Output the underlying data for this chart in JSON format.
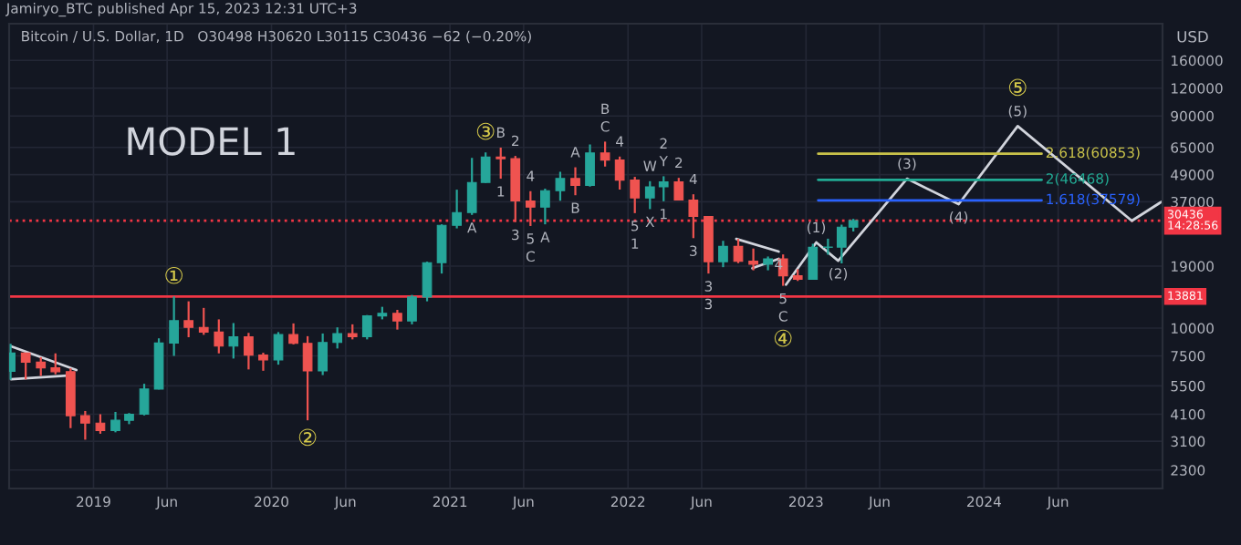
{
  "chart_data": {
    "type": "candlestick",
    "title": "Jamiryo_BTC published Apr 15, 2023 12:31 UTC+3",
    "subtitle": "Bitcoin / U.S. Dollar, 1D   O30498 H30620 L30115 C30436 −62 (−0.20%)",
    "ylabel": "USD",
    "x": [
      "2018-07-15",
      "2018-08-15",
      "2018-09-15",
      "2018-10-15",
      "2018-11-15",
      "2018-12-15",
      "2019-01-15",
      "2019-02-15",
      "2019-03-15",
      "2019-04-15",
      "2019-05-15",
      "2019-06-15",
      "2019-07-15",
      "2019-08-15",
      "2019-09-15",
      "2019-10-15",
      "2019-11-15",
      "2019-12-15",
      "2020-01-15",
      "2020-02-15",
      "2020-03-15",
      "2020-04-15",
      "2020-05-15",
      "2020-06-15",
      "2020-07-15",
      "2020-08-15",
      "2020-09-15",
      "2020-10-15",
      "2020-11-15",
      "2020-12-15",
      "2021-01-15",
      "2021-02-15",
      "2021-03-15",
      "2021-04-15",
      "2021-05-15",
      "2021-06-15",
      "2021-07-15",
      "2021-08-15",
      "2021-09-15",
      "2021-10-15",
      "2021-11-15",
      "2021-12-15",
      "2022-01-15",
      "2022-02-15",
      "2022-03-15",
      "2022-04-15",
      "2022-05-15",
      "2022-06-15",
      "2022-07-15",
      "2022-08-15",
      "2022-09-15",
      "2022-10-15",
      "2022-11-15",
      "2022-12-15",
      "2023-01-15",
      "2023-02-15",
      "2023-03-15",
      "2023-04-08"
    ],
    "ohlc": [
      [
        6390,
        8500,
        5860,
        7730
      ],
      [
        7730,
        7760,
        5880,
        7030
      ],
      [
        7030,
        7400,
        6100,
        6630
      ],
      [
        6630,
        7700,
        6200,
        6370
      ],
      [
        6370,
        6600,
        3550,
        4040
      ],
      [
        4040,
        4240,
        3150,
        3740
      ],
      [
        3740,
        4100,
        3350,
        3460
      ],
      [
        3460,
        4200,
        3400,
        3850
      ],
      [
        3850,
        4150,
        3700,
        4100
      ],
      [
        4100,
        5620,
        4050,
        5320
      ],
      [
        5320,
        9000,
        5300,
        8570
      ],
      [
        8570,
        13880,
        7500,
        10800
      ],
      [
        10800,
        13200,
        9100,
        10080
      ],
      [
        10080,
        12330,
        9330,
        9600
      ],
      [
        9600,
        10950,
        7700,
        8300
      ],
      [
        8300,
        10540,
        7300,
        9150
      ],
      [
        9150,
        9520,
        6520,
        7560
      ],
      [
        7560,
        7750,
        6430,
        7200
      ],
      [
        7200,
        9600,
        6850,
        9350
      ],
      [
        9350,
        10500,
        8450,
        8540
      ],
      [
        8540,
        9200,
        3850,
        6420
      ],
      [
        6420,
        9460,
        6150,
        8620
      ],
      [
        8620,
        10080,
        8100,
        9450
      ],
      [
        9450,
        10400,
        8900,
        9140
      ],
      [
        9140,
        11450,
        8900,
        11350
      ],
      [
        11350,
        12470,
        10950,
        11650
      ],
      [
        11650,
        12080,
        9850,
        10780
      ],
      [
        10780,
        14100,
        10400,
        13800
      ],
      [
        13800,
        19900,
        13200,
        19700
      ],
      [
        19700,
        29300,
        17600,
        28990
      ],
      [
        28990,
        41950,
        28100,
        33100
      ],
      [
        33100,
        58300,
        32300,
        45200
      ],
      [
        45200,
        61700,
        45000,
        58800
      ],
      [
        58800,
        64850,
        47000,
        57800
      ],
      [
        57800,
        59500,
        30000,
        37300
      ],
      [
        37300,
        41300,
        28800,
        35000
      ],
      [
        35000,
        42400,
        29300,
        41500
      ],
      [
        41500,
        50500,
        37400,
        47100
      ],
      [
        47100,
        52900,
        39600,
        43800
      ],
      [
        43800,
        67000,
        43300,
        61300
      ],
      [
        61300,
        69000,
        53300,
        57000
      ],
      [
        57000,
        59100,
        42000,
        46300
      ],
      [
        46300,
        47900,
        32900,
        38500
      ],
      [
        38500,
        45800,
        34300,
        43200
      ],
      [
        43200,
        48200,
        37200,
        45500
      ],
      [
        45500,
        47400,
        37600,
        37700
      ],
      [
        37700,
        40000,
        25400,
        31800
      ],
      [
        31800,
        31900,
        17600,
        19900
      ],
      [
        19900,
        24700,
        18800,
        23300
      ],
      [
        23300,
        25200,
        19600,
        20000
      ],
      [
        20000,
        22800,
        18200,
        19400
      ],
      [
        19400,
        21000,
        18200,
        20500
      ],
      [
        20500,
        21450,
        15500,
        17200
      ],
      [
        17200,
        18400,
        16300,
        16600
      ],
      [
        16600,
        23950,
        16500,
        23100
      ],
      [
        23100,
        25250,
        21400,
        23150
      ],
      [
        23150,
        29200,
        19550,
        28450
      ],
      [
        28450,
        31000,
        27200,
        30436
      ]
    ],
    "series": [
      {
        "type": "line",
        "color": "#d1d4dc",
        "x": [
          "2022-11-21",
          "2023-01-22",
          "2023-03-08",
          "2023-07-27",
          "2023-11-10",
          "2024-03-10",
          "2024-10-30",
          "2024-12-30"
        ],
        "values": [
          15700,
          24300,
          20100,
          47000,
          36100,
          81000,
          30400,
          37000
        ]
      },
      {
        "type": "line",
        "name": "2.618(60853)",
        "color": "#c9c24a",
        "x": [
          "2023-01-26",
          "2024-04-28"
        ],
        "values": [
          60853,
          60853
        ]
      },
      {
        "type": "line",
        "name": "2(46468)",
        "color": "#22ab94",
        "x": [
          "2023-01-26",
          "2024-04-28"
        ],
        "values": [
          46468,
          46468
        ]
      },
      {
        "type": "line",
        "name": "1.618(37579)",
        "color": "#2962ff",
        "x": [
          "2023-01-26",
          "2024-04-28"
        ],
        "values": [
          37579,
          37579
        ]
      },
      {
        "type": "line",
        "color": "#d1d4dc",
        "x": [
          "2018-07-16",
          "2018-11-27"
        ],
        "values": [
          8280,
          6480
        ]
      },
      {
        "type": "line",
        "color": "#d1d4dc",
        "x": [
          "2018-07-16",
          "2018-11-08"
        ],
        "values": [
          5890,
          6120
        ]
      },
      {
        "type": "line",
        "color": "#d1d4dc",
        "x": [
          "2022-08-11",
          "2022-11-06"
        ],
        "values": [
          25200,
          22100
        ]
      },
      {
        "type": "line",
        "color": "#d1d4dc",
        "x": [
          "2022-09-13",
          "2022-11-06"
        ],
        "values": [
          18600,
          20500
        ]
      }
    ],
    "ref_lines": [
      {
        "axis": "y",
        "value": 13881,
        "label": "13881",
        "color": "#f23645",
        "line_style": "solid"
      },
      {
        "axis": "y",
        "value": 30436,
        "label": "30436\n14:28:56",
        "color": "#f23645",
        "line_style": "dotted"
      }
    ],
    "annotations": [
      "MODEL 1",
      {
        "text": "①",
        "x": "2019-06-15",
        "y": 13880
      },
      {
        "text": "②",
        "x": "2020-03-15",
        "y": 3850
      },
      {
        "text": "③",
        "x": "2021-03-15",
        "y": 61700
      },
      {
        "text": "5",
        "x": "2022-11-15",
        "y": 15500
      },
      {
        "text": "C",
        "x": "2022-11-15",
        "y": 15500
      },
      {
        "text": "④",
        "x": "2022-11-15",
        "y": 15500
      },
      {
        "text": "(5)",
        "x": "2024-03-10",
        "y": 81000
      },
      {
        "text": "⑤",
        "x": "2024-03-10",
        "y": 81000
      },
      {
        "text": "3",
        "x": "2021-05-15",
        "y": 30000
      },
      {
        "text": "5",
        "x": "2021-06-15",
        "y": 28800
      },
      {
        "text": "C",
        "x": "2021-06-15",
        "y": 28800
      },
      {
        "text": "A",
        "x": "2021-07-15",
        "y": 29300
      },
      {
        "text": "C",
        "x": "2021-11-15",
        "y": 69000
      },
      {
        "text": "B",
        "x": "2021-11-15",
        "y": 69000
      },
      {
        "text": "5",
        "x": "2022-01-15",
        "y": 32900
      },
      {
        "text": "1",
        "x": "2022-01-15",
        "y": 32900
      },
      {
        "text": "Y",
        "x": "2022-03-15",
        "y": 48200
      },
      {
        "text": "2",
        "x": "2022-03-15",
        "y": 48200
      },
      {
        "text": "W",
        "x": "2022-02-15",
        "y": 45800
      },
      {
        "text": "X",
        "x": "2022-02-15",
        "y": 34300
      },
      {
        "text": "1",
        "x": "2022-03-15",
        "y": 37200
      },
      {
        "text": "2",
        "x": "2022-04-15",
        "y": 47400
      },
      {
        "text": "4",
        "x": "2022-05-15",
        "y": 40000
      },
      {
        "text": "3",
        "x": "2022-05-15",
        "y": 25400
      },
      {
        "text": "3",
        "x": "2022-06-15",
        "y": 17600
      },
      {
        "text": "3",
        "x": "2022-06-15",
        "y": 17600
      },
      {
        "text": "4",
        "x": "2022-11-06",
        "y": 22100
      },
      {
        "text": "(1)",
        "x": "2023-01-22",
        "y": 24300
      },
      {
        "text": "(2)",
        "x": "2023-03-08",
        "y": 20100
      },
      {
        "text": "(3)",
        "x": "2023-07-27",
        "y": 47000
      },
      {
        "text": "(4)",
        "x": "2023-11-10",
        "y": 36100
      },
      {
        "text": "A",
        "x": "2021-02-15",
        "y": 32300
      },
      {
        "text": "B",
        "x": "2021-04-15",
        "y": 64850
      },
      {
        "text": "2",
        "x": "2021-05-15",
        "y": 59500
      },
      {
        "text": "1",
        "x": "2021-04-15",
        "y": 47000
      },
      {
        "text": "4",
        "x": "2021-06-15",
        "y": 41300
      },
      {
        "text": "A",
        "x": "2021-09-15",
        "y": 52900
      },
      {
        "text": "B",
        "x": "2021-09-15",
        "y": 39600
      },
      {
        "text": "4",
        "x": "2021-12-15",
        "y": 59100
      }
    ],
    "log": true,
    "ylim": [
      1900,
      234000
    ],
    "yticks": [
      2300,
      3100,
      4100,
      5500,
      7500,
      10000,
      19000,
      37000,
      49000,
      65000,
      90000,
      120000,
      160000
    ],
    "xlim": [
      "2018-07-12",
      "2025-01-01"
    ],
    "xticks": [
      {
        "value": "2019-01-01",
        "label": "2019"
      },
      {
        "value": "2019-06-01",
        "label": "Jun"
      },
      {
        "value": "2020-01-01",
        "label": "2020"
      },
      {
        "value": "2020-06-01",
        "label": "Jun"
      },
      {
        "value": "2021-01-01",
        "label": "2021"
      },
      {
        "value": "2021-06-01",
        "label": "Jun"
      },
      {
        "value": "2022-01-01",
        "label": "2022"
      },
      {
        "value": "2022-06-01",
        "label": "Jun"
      },
      {
        "value": "2023-01-01",
        "label": "2023"
      },
      {
        "value": "2023-06-01",
        "label": "Jun"
      },
      {
        "value": "2024-01-01",
        "label": "2024"
      },
      {
        "value": "2024-06-01",
        "label": "Jun"
      }
    ],
    "grid": true
  }
}
